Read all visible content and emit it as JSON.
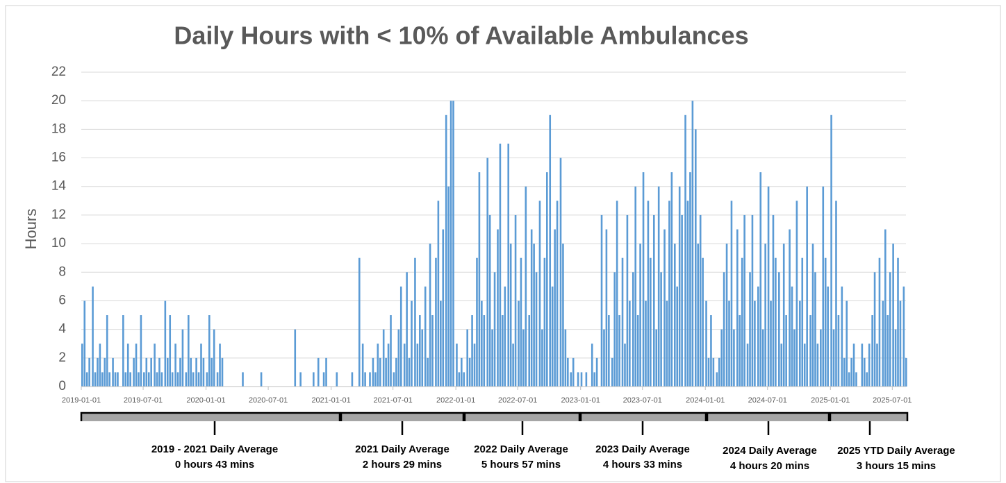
{
  "chart_data": {
    "type": "bar",
    "title": "Daily Hours with < 10% of Available Ambulances",
    "ylabel": "Hours",
    "color": "#5b9bd5",
    "grid": true,
    "xlim": [
      "2019-01-01",
      "2025-08-10"
    ],
    "ylim": [
      0,
      22
    ],
    "yticks": [
      0,
      2,
      4,
      6,
      8,
      10,
      12,
      14,
      16,
      18,
      20,
      22
    ],
    "xticks": [
      "2019-01-01",
      "2019-07-01",
      "2020-01-01",
      "2020-07-01",
      "2021-01-01",
      "2021-07-01",
      "2022-01-01",
      "2022-07-01",
      "2023-01-01",
      "2023-07-01",
      "2024-01-01",
      "2024-07-01",
      "2025-01-01",
      "2025-07-01"
    ],
    "x": [
      "2019-01-01",
      "2019-01-08",
      "2019-01-15",
      "2019-01-22",
      "2019-02-01",
      "2019-02-08",
      "2019-02-15",
      "2019-02-22",
      "2019-03-01",
      "2019-03-08",
      "2019-03-15",
      "2019-03-22",
      "2019-04-01",
      "2019-04-08",
      "2019-04-15",
      "2019-04-22",
      "2019-05-01",
      "2019-05-08",
      "2019-05-15",
      "2019-05-22",
      "2019-06-01",
      "2019-06-08",
      "2019-06-15",
      "2019-06-22",
      "2019-07-01",
      "2019-07-08",
      "2019-07-15",
      "2019-07-22",
      "2019-08-01",
      "2019-08-08",
      "2019-08-15",
      "2019-08-22",
      "2019-09-01",
      "2019-09-08",
      "2019-09-15",
      "2019-09-22",
      "2019-10-01",
      "2019-10-08",
      "2019-10-15",
      "2019-10-22",
      "2019-11-01",
      "2019-11-08",
      "2019-11-15",
      "2019-11-22",
      "2019-12-01",
      "2019-12-08",
      "2019-12-15",
      "2019-12-22",
      "2020-01-01",
      "2020-01-08",
      "2020-01-15",
      "2020-01-22",
      "2020-02-01",
      "2020-02-08",
      "2020-02-15",
      "2020-02-22",
      "2020-03-01",
      "2020-03-08",
      "2020-03-15",
      "2020-03-22",
      "2020-04-01",
      "2020-04-08",
      "2020-04-15",
      "2020-04-22",
      "2020-05-01",
      "2020-05-08",
      "2020-05-15",
      "2020-05-22",
      "2020-06-01",
      "2020-06-08",
      "2020-06-15",
      "2020-06-22",
      "2020-07-01",
      "2020-07-08",
      "2020-07-15",
      "2020-07-22",
      "2020-08-01",
      "2020-08-08",
      "2020-08-15",
      "2020-08-22",
      "2020-09-01",
      "2020-09-08",
      "2020-09-15",
      "2020-09-22",
      "2020-10-01",
      "2020-10-08",
      "2020-10-15",
      "2020-10-22",
      "2020-11-01",
      "2020-11-08",
      "2020-11-15",
      "2020-11-22",
      "2020-12-01",
      "2020-12-08",
      "2020-12-15",
      "2020-12-22",
      "2021-01-01",
      "2021-01-08",
      "2021-01-15",
      "2021-01-22",
      "2021-02-01",
      "2021-02-08",
      "2021-02-15",
      "2021-02-22",
      "2021-03-01",
      "2021-03-08",
      "2021-03-15",
      "2021-03-22",
      "2021-04-01",
      "2021-04-08",
      "2021-04-15",
      "2021-04-22",
      "2021-05-01",
      "2021-05-08",
      "2021-05-15",
      "2021-05-22",
      "2021-06-01",
      "2021-06-08",
      "2021-06-15",
      "2021-06-22",
      "2021-07-01",
      "2021-07-08",
      "2021-07-15",
      "2021-07-22",
      "2021-08-01",
      "2021-08-08",
      "2021-08-15",
      "2021-08-22",
      "2021-09-01",
      "2021-09-08",
      "2021-09-15",
      "2021-09-22",
      "2021-10-01",
      "2021-10-08",
      "2021-10-15",
      "2021-10-22",
      "2021-11-01",
      "2021-11-08",
      "2021-11-15",
      "2021-11-22",
      "2021-12-01",
      "2021-12-08",
      "2021-12-15",
      "2021-12-22",
      "2022-01-01",
      "2022-01-08",
      "2022-01-15",
      "2022-01-22",
      "2022-02-01",
      "2022-02-08",
      "2022-02-15",
      "2022-02-22",
      "2022-03-01",
      "2022-03-08",
      "2022-03-15",
      "2022-03-22",
      "2022-04-01",
      "2022-04-08",
      "2022-04-15",
      "2022-04-22",
      "2022-05-01",
      "2022-05-08",
      "2022-05-15",
      "2022-05-22",
      "2022-06-01",
      "2022-06-08",
      "2022-06-15",
      "2022-06-22",
      "2022-07-01",
      "2022-07-08",
      "2022-07-15",
      "2022-07-22",
      "2022-08-01",
      "2022-08-08",
      "2022-08-15",
      "2022-08-22",
      "2022-09-01",
      "2022-09-08",
      "2022-09-15",
      "2022-09-22",
      "2022-10-01",
      "2022-10-08",
      "2022-10-15",
      "2022-10-22",
      "2022-11-01",
      "2022-11-08",
      "2022-11-15",
      "2022-11-22",
      "2022-12-01",
      "2022-12-08",
      "2022-12-15",
      "2022-12-22",
      "2023-01-01",
      "2023-01-08",
      "2023-01-15",
      "2023-01-22",
      "2023-02-01",
      "2023-02-08",
      "2023-02-15",
      "2023-02-22",
      "2023-03-01",
      "2023-03-08",
      "2023-03-15",
      "2023-03-22",
      "2023-04-01",
      "2023-04-08",
      "2023-04-15",
      "2023-04-22",
      "2023-05-01",
      "2023-05-08",
      "2023-05-15",
      "2023-05-22",
      "2023-06-01",
      "2023-06-08",
      "2023-06-15",
      "2023-06-22",
      "2023-07-01",
      "2023-07-08",
      "2023-07-15",
      "2023-07-22",
      "2023-08-01",
      "2023-08-08",
      "2023-08-15",
      "2023-08-22",
      "2023-09-01",
      "2023-09-08",
      "2023-09-15",
      "2023-09-22",
      "2023-10-01",
      "2023-10-08",
      "2023-10-15",
      "2023-10-22",
      "2023-11-01",
      "2023-11-08",
      "2023-11-15",
      "2023-11-22",
      "2023-12-01",
      "2023-12-08",
      "2023-12-15",
      "2023-12-22",
      "2024-01-01",
      "2024-01-08",
      "2024-01-15",
      "2024-01-22",
      "2024-02-01",
      "2024-02-08",
      "2024-02-15",
      "2024-02-22",
      "2024-03-01",
      "2024-03-08",
      "2024-03-15",
      "2024-03-22",
      "2024-04-01",
      "2024-04-08",
      "2024-04-15",
      "2024-04-22",
      "2024-05-01",
      "2024-05-08",
      "2024-05-15",
      "2024-05-22",
      "2024-06-01",
      "2024-06-08",
      "2024-06-15",
      "2024-06-22",
      "2024-07-01",
      "2024-07-08",
      "2024-07-15",
      "2024-07-22",
      "2024-08-01",
      "2024-08-08",
      "2024-08-15",
      "2024-08-22",
      "2024-09-01",
      "2024-09-08",
      "2024-09-15",
      "2024-09-22",
      "2024-10-01",
      "2024-10-08",
      "2024-10-15",
      "2024-10-22",
      "2024-11-01",
      "2024-11-08",
      "2024-11-15",
      "2024-11-22",
      "2024-12-01",
      "2024-12-08",
      "2024-12-15",
      "2024-12-22",
      "2025-01-01",
      "2025-01-08",
      "2025-01-15",
      "2025-01-22",
      "2025-02-01",
      "2025-02-08",
      "2025-02-15",
      "2025-02-22",
      "2025-03-01",
      "2025-03-08",
      "2025-03-15",
      "2025-03-22",
      "2025-04-01",
      "2025-04-08",
      "2025-04-15",
      "2025-04-22",
      "2025-05-01",
      "2025-05-08",
      "2025-05-15",
      "2025-05-22",
      "2025-06-01",
      "2025-06-08",
      "2025-06-15",
      "2025-06-22",
      "2025-07-01",
      "2025-07-08",
      "2025-07-15",
      "2025-07-22",
      "2025-08-01",
      "2025-08-08"
    ],
    "values": [
      3,
      6,
      1,
      2,
      7,
      1,
      2,
      3,
      1,
      2,
      5,
      1,
      2,
      1,
      1,
      0,
      5,
      1,
      3,
      1,
      2,
      3,
      1,
      5,
      1,
      2,
      1,
      2,
      3,
      1,
      2,
      1,
      6,
      2,
      5,
      1,
      3,
      1,
      2,
      4,
      1,
      5,
      2,
      1,
      2,
      1,
      3,
      2,
      1,
      5,
      2,
      4,
      1,
      3,
      2,
      0,
      0,
      0,
      0,
      0,
      0,
      0,
      1,
      0,
      0,
      0,
      0,
      0,
      0,
      1,
      0,
      0,
      0,
      0,
      0,
      0,
      0,
      0,
      0,
      0,
      0,
      0,
      4,
      0,
      1,
      0,
      0,
      0,
      0,
      1,
      0,
      2,
      0,
      1,
      2,
      0,
      0,
      0,
      1,
      0,
      0,
      0,
      0,
      0,
      1,
      0,
      0,
      9,
      3,
      1,
      0,
      1,
      2,
      1,
      3,
      2,
      4,
      2,
      3,
      5,
      1,
      2,
      4,
      7,
      3,
      8,
      2,
      6,
      9,
      3,
      5,
      4,
      7,
      2,
      10,
      5,
      9,
      13,
      6,
      11,
      19,
      14,
      20,
      20,
      3,
      1,
      2,
      1,
      4,
      2,
      5,
      3,
      9,
      15,
      6,
      5,
      16,
      12,
      4,
      8,
      11,
      17,
      5,
      7,
      17,
      10,
      3,
      12,
      6,
      9,
      4,
      14,
      5,
      11,
      10,
      8,
      13,
      4,
      9,
      15,
      19,
      7,
      11,
      13,
      16,
      10,
      4,
      2,
      1,
      2,
      0,
      1,
      1,
      0,
      1,
      0,
      3,
      1,
      2,
      0,
      12,
      4,
      11,
      5,
      2,
      8,
      13,
      5,
      9,
      3,
      12,
      6,
      8,
      14,
      5,
      10,
      15,
      6,
      13,
      9,
      12,
      4,
      14,
      8,
      11,
      6,
      13,
      15,
      10,
      7,
      14,
      12,
      19,
      13,
      15,
      20,
      18,
      10,
      12,
      9,
      6,
      2,
      5,
      2,
      1,
      2,
      4,
      8,
      10,
      6,
      13,
      4,
      11,
      5,
      9,
      12,
      3,
      8,
      12,
      6,
      7,
      15,
      4,
      10,
      14,
      6,
      12,
      9,
      8,
      3,
      10,
      5,
      11,
      7,
      4,
      13,
      6,
      9,
      3,
      14,
      5,
      10,
      8,
      3,
      4,
      14,
      9,
      7,
      19,
      4,
      13,
      5,
      7,
      2,
      6,
      1,
      2,
      3,
      1,
      0,
      3,
      2,
      1,
      3,
      5,
      8,
      3,
      9,
      6,
      11,
      5,
      8,
      10,
      4,
      9,
      6,
      7,
      2
    ],
    "annotations": [
      {
        "text": "2019 - 2021 Daily Average",
        "subtext": "0 hours 43 mins"
      },
      {
        "text": "2021 Daily Average",
        "subtext": "2 hours 29 mins"
      },
      {
        "text": "2022 Daily Average",
        "subtext": "5 hours 57 mins"
      },
      {
        "text": "2023 Daily Average",
        "subtext": "4 hours 33 mins"
      },
      {
        "text": "2024 Daily Average",
        "subtext": "4 hours 20 mins"
      },
      {
        "text": "2025 YTD Daily Average",
        "subtext": "3 hours 15 mins"
      }
    ]
  }
}
